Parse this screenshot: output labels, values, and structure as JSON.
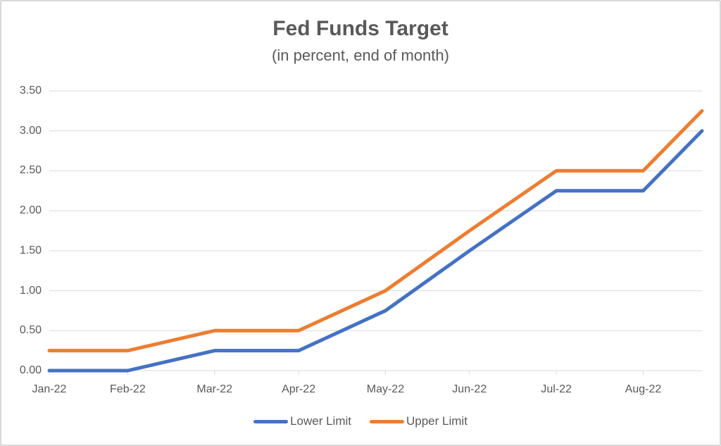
{
  "chart": {
    "title": "Fed Funds Target",
    "subtitle": "(in percent, end of month)"
  },
  "legend": {
    "lower_label": "Lower Limit",
    "upper_label": "Upper Limit"
  },
  "chart_data": {
    "type": "line",
    "title": "Fed Funds Target",
    "subtitle": "(in percent, end of month)",
    "categories": [
      "Jan-22",
      "Feb-22",
      "Mar-22",
      "Apr-22",
      "May-22",
      "Jun-22",
      "Jul-22",
      "Aug-22",
      ""
    ],
    "x_day_offsets": [
      0,
      28,
      59,
      89,
      120,
      150,
      181,
      212,
      233
    ],
    "series": [
      {
        "name": "Lower Limit",
        "color": "#4472C4",
        "values": [
          0.0,
          0.0,
          0.25,
          0.25,
          0.75,
          1.5,
          2.25,
          2.25,
          3.0
        ]
      },
      {
        "name": "Upper Limit",
        "color": "#ED7D31",
        "values": [
          0.25,
          0.25,
          0.5,
          0.5,
          1.0,
          1.75,
          2.5,
          2.5,
          3.25
        ]
      }
    ],
    "xlabel": "",
    "ylabel": "",
    "ylim": [
      0,
      3.5
    ],
    "y_ticks": [
      0,
      0.5,
      1,
      1.5,
      2,
      2.5,
      3,
      3.5
    ],
    "y_tick_labels": [
      "0.00",
      "0.50",
      "1.00",
      "1.50",
      "2.00",
      "2.50",
      "3.00",
      "3.50"
    ],
    "grid": true,
    "legend_position": "bottom",
    "line_width": 5,
    "colors": {
      "grid": "#D9D9D9",
      "axis": "#D9D9D9",
      "text": "#595959",
      "border": "#D9D9D9",
      "background": "#FFFFFF"
    }
  }
}
